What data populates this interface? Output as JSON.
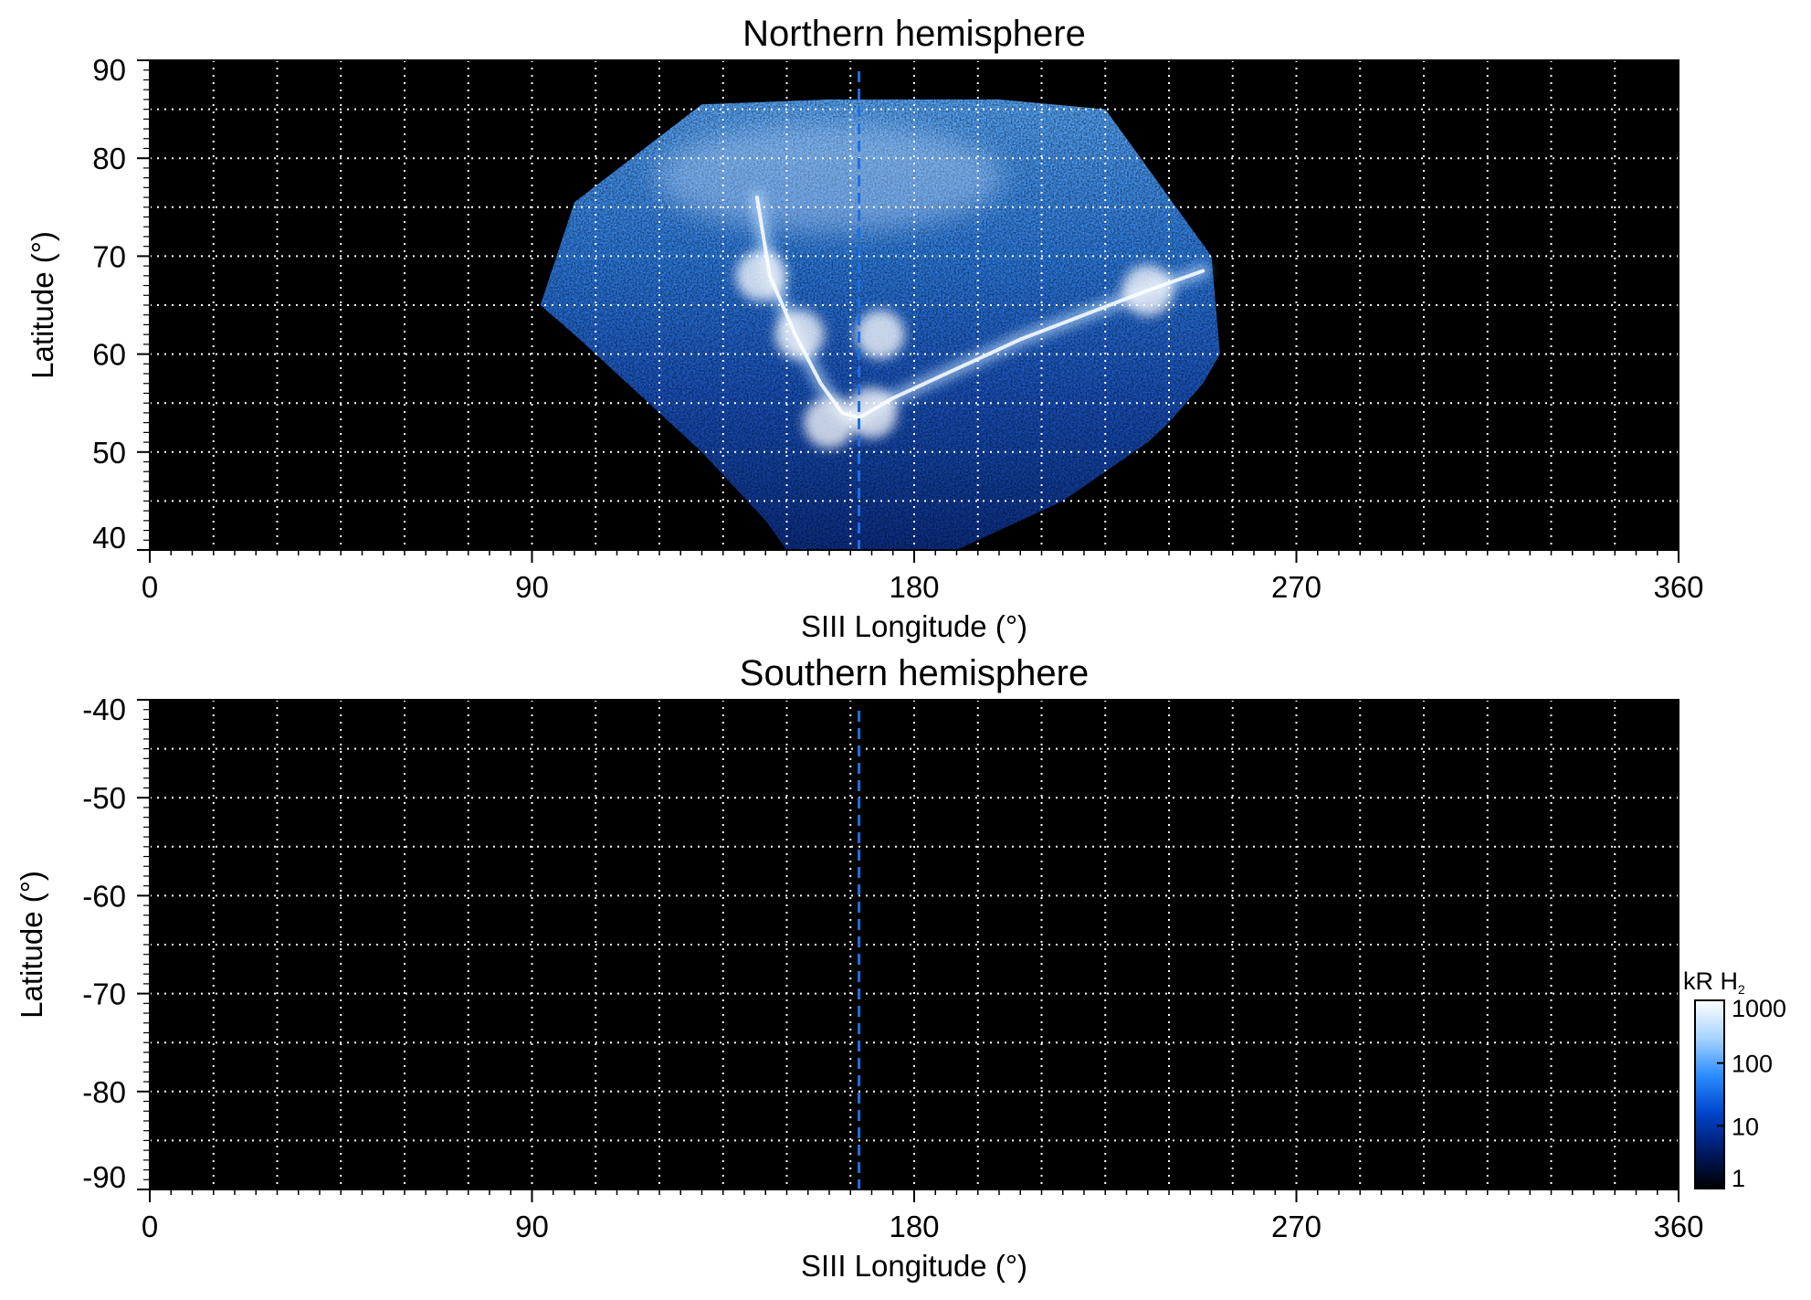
{
  "chart_data": [
    {
      "type": "heatmap",
      "title": "Northern hemisphere",
      "xlabel": "SIII Longitude (°)",
      "ylabel": "Latitude (°)",
      "xlim": [
        0,
        360
      ],
      "ylim": [
        40,
        90
      ],
      "xticks": [
        "0",
        "90",
        "180",
        "270",
        "360"
      ],
      "yticks": [
        "40",
        "50",
        "60",
        "70",
        "80",
        "90"
      ],
      "grid": true,
      "background": "#000000",
      "central_meridian_longitude": 167,
      "coverage_outline": {
        "longitude": [
          92,
          100,
          130,
          160,
          190,
          200,
          225,
          250,
          252,
          248,
          240,
          235,
          215,
          190,
          175,
          163,
          150,
          145,
          130,
          115,
          100,
          92
        ],
        "latitude": [
          65,
          75.5,
          85.5,
          86,
          86,
          86,
          85,
          70,
          60,
          57,
          53,
          51,
          45,
          40,
          40,
          40,
          40,
          43,
          50,
          56,
          62,
          65
        ]
      },
      "main_oval": {
        "longitude": [
          143,
          146,
          152,
          158,
          163,
          167,
          175,
          190,
          205,
          220,
          235,
          248
        ],
        "latitude": [
          76,
          68,
          62,
          57,
          54,
          53.5,
          55.5,
          58.5,
          61.5,
          64,
          66.5,
          68.5
        ]
      },
      "bright_spots": [
        {
          "longitude": 144,
          "latitude": 68,
          "kR": 900
        },
        {
          "longitude": 153,
          "latitude": 62,
          "kR": 700
        },
        {
          "longitude": 160,
          "latitude": 53,
          "kR": 1000
        },
        {
          "longitude": 170,
          "latitude": 54,
          "kR": 1000
        },
        {
          "longitude": 172,
          "latitude": 62,
          "kR": 600
        },
        {
          "longitude": 235,
          "latitude": 66.5,
          "kR": 1000
        }
      ]
    },
    {
      "type": "heatmap",
      "title": "Southern hemisphere",
      "xlabel": "SIII Longitude (°)",
      "ylabel": "Latitude (°)",
      "xlim": [
        0,
        360
      ],
      "ylim": [
        -90,
        -40
      ],
      "xticks": [
        "0",
        "90",
        "180",
        "270",
        "360"
      ],
      "yticks": [
        "-40",
        "-50",
        "-60",
        "-70",
        "-80",
        "-90"
      ],
      "grid": true,
      "background": "#000000",
      "central_meridian_longitude": 167
    }
  ],
  "colorbar": {
    "unit_main": "kR H",
    "unit_sub": "2",
    "scale": "log",
    "range": [
      1,
      1000
    ],
    "ticks": [
      "1",
      "10",
      "100",
      "1000"
    ],
    "colors": [
      "#000000",
      "#001a66",
      "#0044cc",
      "#2a8cff",
      "#a8d4ff",
      "#ffffff"
    ]
  }
}
